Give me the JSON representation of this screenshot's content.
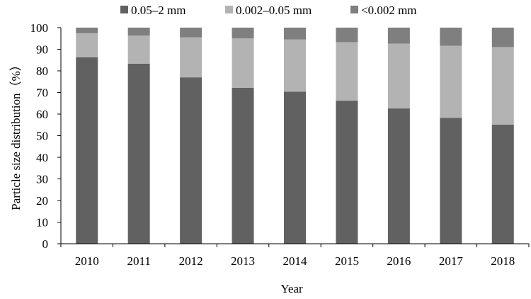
{
  "chart_data": {
    "type": "bar",
    "stacked": true,
    "title": "",
    "xlabel": "Year",
    "ylabel": "Particle size distribution（%）",
    "ylim": [
      0,
      100
    ],
    "yticks": [
      0,
      10,
      20,
      30,
      40,
      50,
      60,
      70,
      80,
      90,
      100
    ],
    "categories": [
      "2010",
      "2011",
      "2012",
      "2013",
      "2014",
      "2015",
      "2016",
      "2017",
      "2018"
    ],
    "series": [
      {
        "name": "0.05–2 mm",
        "color": "#616161",
        "values": [
          86.3,
          83.3,
          77.0,
          72.2,
          70.4,
          66.2,
          62.6,
          58.2,
          55.1
        ]
      },
      {
        "name": "0.002–0.05 mm",
        "color": "#b3b3b3",
        "values": [
          11.1,
          13.0,
          18.5,
          22.8,
          24.1,
          27.1,
          30.0,
          33.4,
          35.9
        ]
      },
      {
        "name": "<0.002 mm",
        "color": "#7f7f7f",
        "values": [
          2.6,
          3.7,
          4.5,
          5.0,
          5.5,
          6.7,
          7.4,
          8.4,
          9.0
        ]
      }
    ],
    "legend_position": "top",
    "grid": false
  }
}
